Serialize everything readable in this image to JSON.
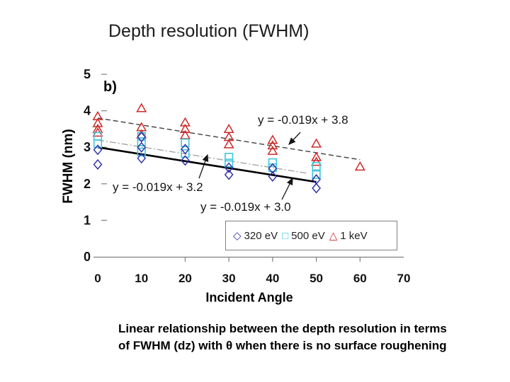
{
  "slide": {
    "title": "Depth resolution (FWHM)",
    "caption_line1": "Linear relationship between the depth resolution in terms",
    "caption_line2": "of FWHM (dz) with θ when there is no surface roughening"
  },
  "chart_data": {
    "type": "scatter",
    "panel_label": "b)",
    "xlabel": "Incident Angle",
    "ylabel": "FWHM (nm)",
    "xlim": [
      0,
      70
    ],
    "ylim": [
      0,
      5
    ],
    "x_ticks": [
      0,
      10,
      20,
      30,
      40,
      50,
      60,
      70
    ],
    "x_ticks_marked": [
      20,
      30,
      40,
      50,
      60
    ],
    "y_ticks": [
      0,
      1,
      2,
      3,
      4,
      5
    ],
    "y_ticks_marked": [
      1,
      2,
      3,
      4,
      5
    ],
    "grid": false,
    "axis_color": "#808080",
    "legend": {
      "position": "inside-bottom-right",
      "items": [
        {
          "label": "320 eV",
          "marker": "diamond",
          "glyph": "◇",
          "color": "#3333A6"
        },
        {
          "label": "500 eV",
          "marker": "square",
          "glyph": "□",
          "color": "#3FC6DF"
        },
        {
          "label": "1 keV",
          "marker": "triangle",
          "glyph": "△",
          "color": "#CC2A2A"
        }
      ]
    },
    "series": [
      {
        "name": "1 keV",
        "marker": "triangle",
        "color": "#CC2A2A",
        "points": [
          [
            0,
            3.85
          ],
          [
            0,
            3.66
          ],
          [
            0,
            3.5
          ],
          [
            0,
            3.4
          ],
          [
            10,
            4.07
          ],
          [
            10,
            3.55
          ],
          [
            10,
            3.35
          ],
          [
            20,
            3.68
          ],
          [
            20,
            3.5
          ],
          [
            20,
            3.33
          ],
          [
            30,
            3.5
          ],
          [
            30,
            3.28
          ],
          [
            30,
            3.08
          ],
          [
            40,
            3.2
          ],
          [
            40,
            3.05
          ],
          [
            40,
            2.9
          ],
          [
            50,
            3.1
          ],
          [
            50,
            2.73
          ],
          [
            50,
            2.6
          ],
          [
            60,
            2.47
          ]
        ]
      },
      {
        "name": "500 eV",
        "marker": "square",
        "color": "#3FC6DF",
        "points": [
          [
            0,
            3.3
          ],
          [
            0,
            3.1
          ],
          [
            10,
            3.3
          ],
          [
            10,
            3.15
          ],
          [
            10,
            2.87
          ],
          [
            20,
            3.12
          ],
          [
            20,
            2.83
          ],
          [
            30,
            2.73
          ],
          [
            30,
            2.57
          ],
          [
            40,
            2.58
          ],
          [
            40,
            2.44
          ],
          [
            50,
            2.48
          ],
          [
            50,
            2.25
          ]
        ]
      },
      {
        "name": "320 eV",
        "marker": "diamond",
        "color": "#3333A6",
        "points": [
          [
            0,
            2.93
          ],
          [
            0,
            2.53
          ],
          [
            10,
            3.28
          ],
          [
            10,
            3.0
          ],
          [
            10,
            2.7
          ],
          [
            20,
            2.95
          ],
          [
            20,
            2.64
          ],
          [
            30,
            2.44
          ],
          [
            30,
            2.25
          ],
          [
            40,
            2.42
          ],
          [
            40,
            2.2
          ],
          [
            50,
            2.12
          ],
          [
            50,
            1.88
          ]
        ]
      }
    ],
    "trendlines": [
      {
        "equation": "y = -0.019x + 3.8",
        "series": "1 keV",
        "slope": -0.019,
        "intercept": 3.8,
        "x_start": 0,
        "x_end": 60,
        "style": "dashed",
        "color": "#404040"
      },
      {
        "equation": "y = -0.019x + 3.2",
        "series": "500 eV",
        "slope": -0.019,
        "intercept": 3.2,
        "x_start": 0,
        "x_end": 48,
        "style": "dashdot",
        "color": "#A6A6A6"
      },
      {
        "equation": "y = -0.019x + 3.0",
        "series": "320 eV",
        "slope": -0.019,
        "intercept": 3.0,
        "x_start": 0,
        "x_end": 50,
        "style": "solid",
        "color": "#000000"
      }
    ],
    "annotation_arrows": [
      {
        "from": [
          344,
          97
        ],
        "to": [
          328,
          114
        ]
      },
      {
        "from": [
          201,
          162
        ],
        "to": [
          213,
          129
        ]
      },
      {
        "from": [
          318,
          192
        ],
        "to": [
          333,
          162
        ]
      }
    ]
  }
}
